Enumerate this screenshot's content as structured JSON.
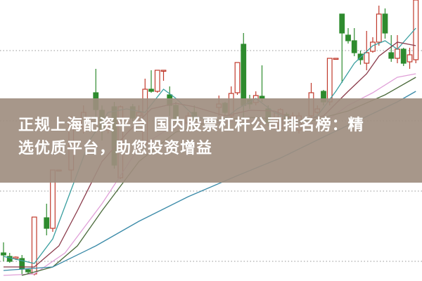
{
  "headline": {
    "line1": "正规上海配资平台 国内股票杠杆公司排名榜：精",
    "line2": "选优质平台，助您投资增益"
  },
  "colors": {
    "up": "#c0392b",
    "down": "#2e8b2e",
    "banner": "#a08e80",
    "grid": "#aaaaaa"
  },
  "chart_data": {
    "type": "candlestick",
    "ylim": [
      0,
      40
    ],
    "xlim": [
      0,
      67
    ],
    "grid": "horizontal dotted",
    "gridlines": [
      32.8,
      22.8,
      12.8,
      2.8
    ],
    "candles_format": [
      "t",
      "open",
      "high",
      "low",
      "close"
    ],
    "candles": [
      [
        0,
        4.0,
        5.5,
        2.8,
        3.7
      ],
      [
        1,
        3.5,
        4.0,
        2.6,
        2.8
      ],
      [
        2,
        3.2,
        3.5,
        3.0,
        3.4
      ],
      [
        3,
        3.2,
        3.7,
        0.8,
        1.7
      ],
      [
        4,
        1.6,
        1.8,
        1.0,
        1.3
      ],
      [
        5,
        1.0,
        9.1,
        0.8,
        9.1
      ],
      [
        7,
        9.0,
        11.0,
        6.5,
        7.5
      ],
      [
        8,
        7.5,
        15.8,
        7.0,
        15.8
      ],
      [
        9,
        15.8,
        15.8,
        15.8,
        15.8
      ],
      [
        11,
        15.8,
        23.5,
        14.2,
        23.0
      ],
      [
        13,
        22.0,
        25.0,
        21.0,
        24.0
      ],
      [
        15,
        26.8,
        30.2,
        22.5,
        24.4
      ],
      [
        16,
        24.3,
        25.0,
        20.0,
        21.5
      ],
      [
        17,
        21.5,
        23.0,
        21.0,
        22.0
      ],
      [
        18,
        24.8,
        25.5,
        16.0,
        16.5
      ],
      [
        19,
        14.7,
        25.0,
        14.5,
        24.8
      ],
      [
        21,
        24.8,
        25.2,
        22.5,
        23.2
      ],
      [
        22,
        23.5,
        25.0,
        22.0,
        24.0
      ],
      [
        23,
        19.5,
        28.8,
        19.0,
        27.3
      ],
      [
        24,
        27.3,
        30.0,
        26.8,
        27.0
      ],
      [
        25,
        27.0,
        30.0,
        26.8,
        30.0
      ],
      [
        26,
        30.0,
        30.0,
        28.5,
        30.0
      ],
      [
        27,
        26.5,
        27.7,
        23.5,
        25.0
      ],
      [
        28,
        25.0,
        25.5,
        22.0,
        23.0
      ],
      [
        30,
        22.5,
        24.0,
        22.0,
        23.5
      ],
      [
        31,
        24.0,
        25.0,
        22.5,
        23.0
      ],
      [
        35,
        24.7,
        26.4,
        23.5,
        25.2
      ],
      [
        36,
        25.3,
        25.5,
        23.5,
        24.0
      ],
      [
        37,
        23.5,
        27.7,
        23.0,
        26.7
      ],
      [
        38,
        26.8,
        31.1,
        26.5,
        31.1
      ],
      [
        39,
        33.7,
        35.3,
        22.4,
        25.0
      ],
      [
        40,
        25.8,
        26.5,
        24.5,
        25.2
      ],
      [
        41,
        25.4,
        27.0,
        25.0,
        26.4
      ],
      [
        42,
        26.3,
        30.7,
        25.5,
        26.0
      ],
      [
        43,
        24.5,
        25.0,
        22.0,
        22.5
      ],
      [
        44,
        22.0,
        24.0,
        21.5,
        23.0
      ],
      [
        45,
        21.7,
        24.6,
        21.5,
        24.4
      ],
      [
        46,
        23.7,
        24.0,
        22.5,
        23.0
      ],
      [
        47,
        22.5,
        24.0,
        22.0,
        23.5
      ],
      [
        48,
        21.5,
        24.0,
        21.0,
        23.5
      ],
      [
        50,
        23.5,
        28.2,
        23.0,
        26.8
      ],
      [
        51,
        24.0,
        25.0,
        23.8,
        24.5
      ],
      [
        52,
        27.0,
        27.2,
        25.0,
        25.5
      ],
      [
        53,
        25.5,
        31.7,
        25.0,
        31.7
      ],
      [
        54,
        31.7,
        31.7,
        31.7,
        31.7
      ],
      [
        55,
        38.0,
        38.0,
        28.2,
        35.3
      ],
      [
        56,
        35.0,
        36.0,
        33.8,
        34.2
      ],
      [
        57,
        34.2,
        36.0,
        32.0,
        32.5
      ],
      [
        58,
        32.3,
        32.8,
        30.8,
        31.5
      ],
      [
        59,
        31.0,
        35.6,
        30.0,
        32.5
      ],
      [
        60,
        32.7,
        34.7,
        32.5,
        34.0
      ],
      [
        61,
        34.0,
        39.2,
        33.5,
        38.0
      ],
      [
        62,
        38.0,
        38.8,
        34.5,
        35.3
      ],
      [
        63,
        32.5,
        35.0,
        31.2,
        31.7
      ],
      [
        64,
        31.7,
        35.0,
        31.0,
        33.0
      ],
      [
        65,
        33.0,
        33.2,
        30.6,
        31.0
      ],
      [
        66,
        31.2,
        33.2,
        30.2,
        32.2
      ],
      [
        67,
        31.5,
        40.0,
        31.0,
        40.0
      ]
    ],
    "moving_averages": [
      {
        "color": "#3a9fa0",
        "points": [
          [
            0,
            3.5
          ],
          [
            5,
            2.5
          ],
          [
            8,
            6
          ],
          [
            11,
            13
          ],
          [
            14,
            20
          ],
          [
            17,
            24
          ],
          [
            20,
            24.5
          ],
          [
            23,
            24
          ],
          [
            26,
            27.3
          ],
          [
            28,
            26
          ],
          [
            31,
            23.5
          ],
          [
            35,
            22.5
          ],
          [
            38,
            24.5
          ],
          [
            41,
            26
          ],
          [
            44,
            24
          ],
          [
            48,
            22.5
          ],
          [
            51,
            23.5
          ],
          [
            54,
            27
          ],
          [
            57,
            31
          ],
          [
            60,
            33.5
          ],
          [
            62,
            34.2
          ],
          [
            64,
            33
          ],
          [
            65,
            34
          ],
          [
            67,
            36
          ]
        ]
      },
      {
        "color": "#8a3a4a",
        "points": [
          [
            0,
            2
          ],
          [
            5,
            2
          ],
          [
            9,
            5
          ],
          [
            12,
            10
          ],
          [
            16,
            17
          ],
          [
            20,
            21
          ],
          [
            24,
            24.5
          ],
          [
            28,
            25.3
          ],
          [
            31,
            24.8
          ],
          [
            36,
            23.5
          ],
          [
            40,
            24.3
          ],
          [
            44,
            24.2
          ],
          [
            48,
            22.8
          ],
          [
            52,
            23.5
          ],
          [
            56,
            27
          ],
          [
            59,
            29.5
          ],
          [
            61,
            32
          ],
          [
            64,
            34
          ],
          [
            67,
            33.5
          ]
        ]
      },
      {
        "color": "#e0a0d8",
        "points": [
          [
            0,
            0.8
          ],
          [
            5,
            1
          ],
          [
            10,
            4
          ],
          [
            16,
            11
          ],
          [
            22,
            19
          ],
          [
            28,
            22.3
          ],
          [
            34,
            22.6
          ],
          [
            40,
            22.8
          ],
          [
            46,
            22
          ],
          [
            52,
            22.5
          ],
          [
            56,
            25
          ],
          [
            60,
            26.8
          ],
          [
            64,
            29
          ],
          [
            67,
            29.5
          ]
        ]
      },
      {
        "color": "#4a6a3a",
        "points": [
          [
            3,
            0.8
          ],
          [
            8,
            2
          ],
          [
            12,
            5
          ],
          [
            16,
            10
          ],
          [
            22,
            17
          ],
          [
            28,
            21.2
          ],
          [
            34,
            22.8
          ],
          [
            40,
            23.3
          ],
          [
            46,
            23
          ],
          [
            50,
            22.8
          ],
          [
            56,
            24.2
          ],
          [
            62,
            26.5
          ],
          [
            67,
            29
          ]
        ]
      },
      {
        "color": "#3a8aa8",
        "points": [
          [
            0,
            1.5
          ],
          [
            8,
            2.0
          ],
          [
            15,
            5
          ],
          [
            22,
            8.5
          ],
          [
            30,
            12
          ],
          [
            38,
            15
          ],
          [
            45,
            17.5
          ],
          [
            52,
            20.5
          ],
          [
            58,
            23
          ],
          [
            64,
            25.5
          ],
          [
            67,
            27
          ]
        ]
      }
    ]
  }
}
